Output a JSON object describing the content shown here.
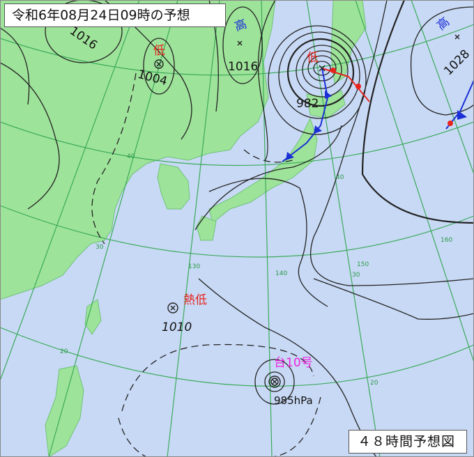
{
  "title": "令和6年08月24日09時の予想",
  "footer": "４８時間予想図",
  "colors": {
    "sea": "#c8d9f5",
    "land": "#9ee39a",
    "grid": "#3aaa5a",
    "isobar": "#222222",
    "low_label": "#e8231c",
    "high_label": "#1b2fd6",
    "typhoon_label": "#ee22dd",
    "warm_front": "#e8231c",
    "cold_front": "#1b2fd6"
  },
  "systems": [
    {
      "type": "low",
      "label": "低",
      "pressure": "1004"
    },
    {
      "type": "high",
      "label": "高",
      "pressure": "1016"
    },
    {
      "type": "low",
      "label": "低",
      "pressure": "982"
    },
    {
      "type": "high",
      "label": "高",
      "pressure": "1028"
    },
    {
      "type": "tropical-low",
      "label": "熱低",
      "pressure": "1010"
    },
    {
      "type": "typhoon",
      "label": "台10号",
      "pressure": "985hPa"
    }
  ],
  "isobar_labels": [
    "1016"
  ],
  "grid_labels": {
    "lat": [
      "40",
      "30",
      "30",
      "20",
      "20",
      "40"
    ],
    "lon": [
      "130",
      "140",
      "150",
      "160"
    ]
  }
}
